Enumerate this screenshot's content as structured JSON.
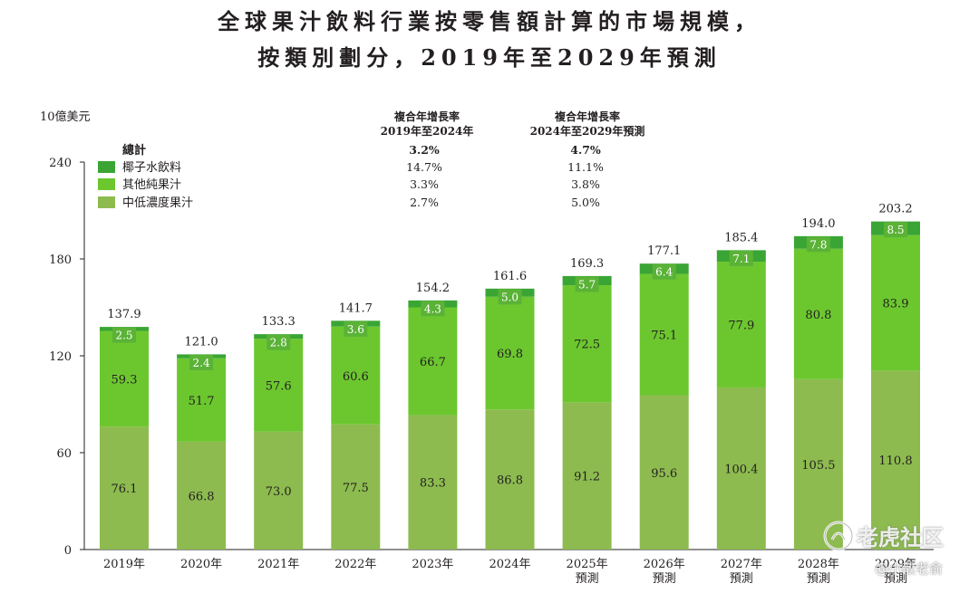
{
  "title_line1": "全球果汁飲料行業按零售額計算的市場規模，",
  "title_line2": "按類別劃分，2019年至2029年預測",
  "watermark": {
    "logo_text": "老虎社区",
    "author": "@小散老俞",
    "logo_icon": "tiger-logo-icon"
  },
  "colors": {
    "coconut": "#3aa535",
    "other_pure": "#6cc72f",
    "mid_low": "#8dbb4f",
    "label_box": "#5ab236"
  },
  "chart_data": {
    "type": "bar",
    "stacked": true,
    "ylabel": "10億美元",
    "ylim": [
      0,
      240
    ],
    "yticks": [
      0,
      60,
      120,
      180,
      240
    ],
    "categories": [
      [
        "2019年"
      ],
      [
        "2020年"
      ],
      [
        "2021年"
      ],
      [
        "2022年"
      ],
      [
        "2023年"
      ],
      [
        "2024年"
      ],
      [
        "2025年",
        "預測"
      ],
      [
        "2026年",
        "預測"
      ],
      [
        "2027年",
        "預測"
      ],
      [
        "2028年",
        "預測"
      ],
      [
        "2029年",
        "預測"
      ]
    ],
    "series": [
      {
        "name": "中低濃度果汁",
        "values": [
          76.1,
          66.8,
          73.0,
          77.5,
          83.3,
          86.8,
          91.2,
          95.6,
          100.4,
          105.5,
          110.8
        ]
      },
      {
        "name": "其他純果汁",
        "values": [
          59.3,
          51.7,
          57.6,
          60.6,
          66.7,
          69.8,
          72.5,
          75.1,
          77.9,
          80.8,
          83.9
        ]
      },
      {
        "name": "椰子水飲料",
        "values": [
          2.5,
          2.4,
          2.8,
          3.6,
          4.3,
          5.0,
          5.7,
          6.4,
          7.1,
          7.8,
          8.5
        ]
      }
    ],
    "totals": [
      137.9,
      121.0,
      133.3,
      141.7,
      154.2,
      161.6,
      169.3,
      177.1,
      185.4,
      194.0,
      203.2
    ],
    "legend": {
      "placement": "top-left",
      "total_label": "總計",
      "cagr_headers": [
        [
          "複合年增長率",
          "2019年至2024年"
        ],
        [
          "複合年增長率",
          "2024年至2029年預測"
        ]
      ],
      "rows": [
        {
          "name": "總計",
          "cagr1": "3.2%",
          "cagr2": "4.7%"
        },
        {
          "name": "椰子水飲料",
          "cagr1": "14.7%",
          "cagr2": "11.1%"
        },
        {
          "name": "其他純果汁",
          "cagr1": "3.3%",
          "cagr2": "3.8%"
        },
        {
          "name": "中低濃度果汁",
          "cagr1": "2.7%",
          "cagr2": "5.0%"
        }
      ]
    }
  }
}
